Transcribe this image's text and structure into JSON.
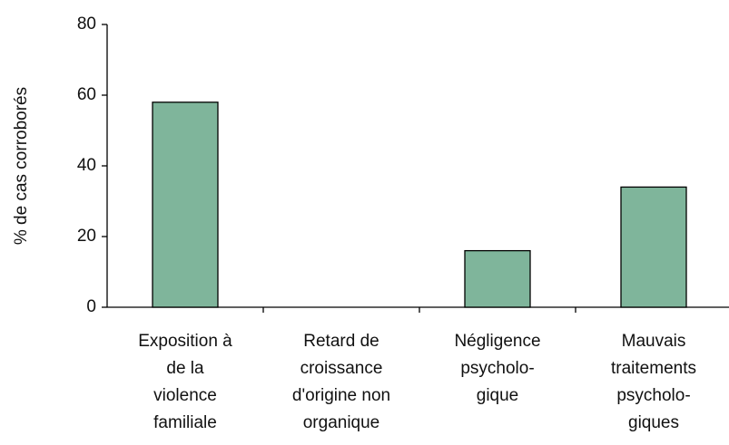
{
  "chart_data": {
    "type": "bar",
    "ylabel": "% de cas corroborés",
    "categories": [
      "Exposition à\nde la\nviolence\nfamiliale",
      "Retard de\ncroissance\nd'origine non\norganique",
      "Négligence\npsycholo-\ngique",
      "Mauvais\ntraitements\npsycholo-\ngiques"
    ],
    "values": [
      58,
      0,
      16,
      34
    ],
    "color": "#7fb59b",
    "ylim": [
      0,
      80
    ],
    "yticks": [
      0,
      20,
      40,
      60,
      80
    ]
  }
}
